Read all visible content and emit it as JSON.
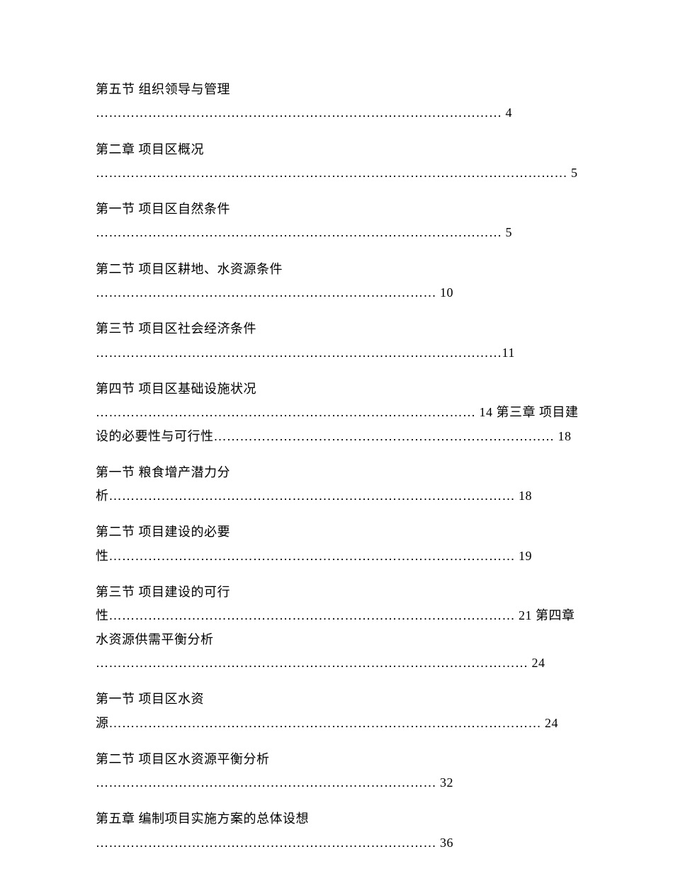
{
  "toc": {
    "text_color": "#000000",
    "background_color": "#ffffff",
    "font_size": 18,
    "entries": [
      {
        "text": "第五节 组织领导与管理 ………………………………………………………………………………… 4"
      },
      {
        "text": "第二章 项目区概况 ……………………………………………………………………………………………… 5"
      },
      {
        "text": "第一节  项目区自然条件 ………………………………………………………………………………… 5"
      },
      {
        "text": "第二节  项目区耕地、水资源条件 …………………………………………………………………… 10"
      },
      {
        "text": "第三节 项目区社会经济条件 …………………………………………………………………………………11"
      },
      {
        "text": "第四节  项目区基础设施状况 …………………………………………………………………………… 14  第三章 项目建设的必要性与可行性…………………………………………………………………… 18"
      },
      {
        "text": "第一节 粮食增产潜力分析………………………………………………………………………………… 18"
      },
      {
        "text": "第二节 项目建设的必要性………………………………………………………………………………… 19"
      },
      {
        "text": "第三节 项目建设的可行性………………………………………………………………………………… 21  第四章 水资源供需平衡分析 ……………………………………………………………………………………… 24"
      },
      {
        "text": "第一节  项目区水资源……………………………………………………………………………………… 24"
      },
      {
        "text": "第二节 项目区水资源平衡分析 …………………………………………………………………… 32"
      },
      {
        "text": "第五章 编制项目实施方案的总体设想 ……………………………………………………………………  36"
      }
    ]
  }
}
